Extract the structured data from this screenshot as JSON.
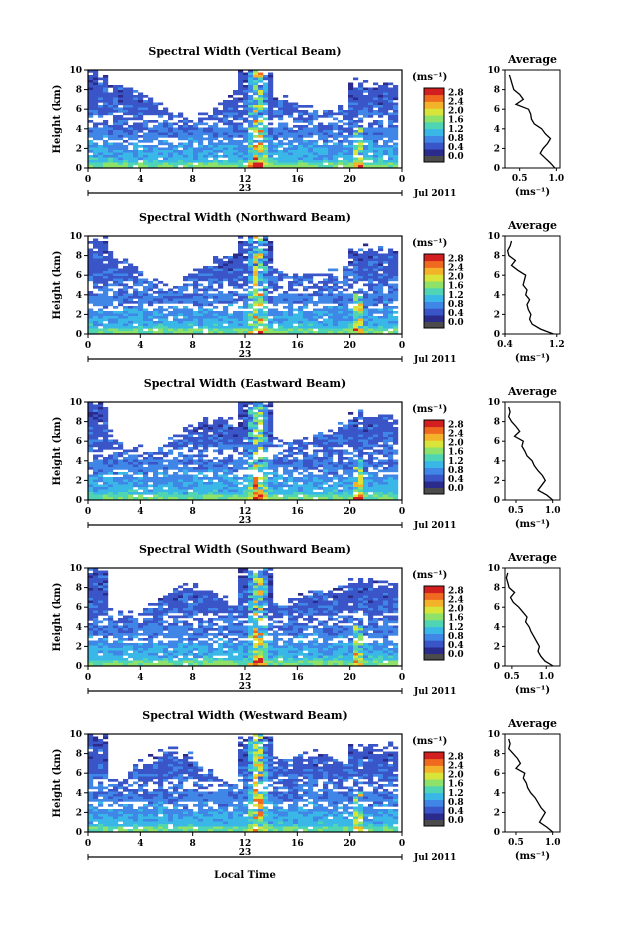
{
  "figure": {
    "common_xlabel": "Local Time",
    "colormap": [
      "#2b2b8c",
      "#3a55c8",
      "#3f86e6",
      "#39b8e8",
      "#4fd4b4",
      "#8ee26a",
      "#d9e43a",
      "#f3b22a",
      "#ef6a1f",
      "#d21f1f"
    ]
  },
  "chart_data": [
    {
      "type": "heatmap",
      "title": "Spectral Width (Vertical Beam)",
      "ylabel": "Height (km)",
      "x_ticks": [
        "0",
        "4",
        "8",
        "12",
        "16",
        "20",
        "0"
      ],
      "y_ticks": [
        "0",
        "2",
        "4",
        "6",
        "8",
        "10"
      ],
      "date_day": "23",
      "date_month": "Jul 2011",
      "xlim": [
        0,
        24
      ],
      "ylim": [
        0,
        10
      ],
      "colorbar": {
        "unit": "(ms⁻¹)",
        "ticks": [
          "0.0",
          "0.4",
          "0.8",
          "1.2",
          "1.6",
          "2.0",
          "2.4",
          "2.8"
        ],
        "range": [
          0,
          3.0
        ]
      },
      "average": {
        "title": "Average",
        "xlabel": "(ms⁻¹)",
        "x_ticks": [
          "0.5",
          "1.0"
        ],
        "xlim": [
          0.3,
          1.05
        ],
        "heights": [
          0,
          0.5,
          1,
          1.5,
          2,
          2.5,
          3,
          3.5,
          4,
          4.5,
          5,
          5.5,
          6,
          6.5,
          7,
          7.5,
          8,
          8.5,
          9,
          9.5
        ],
        "values": [
          0.98,
          0.92,
          0.85,
          0.78,
          0.82,
          0.88,
          0.92,
          0.85,
          0.8,
          0.7,
          0.66,
          0.65,
          0.62,
          0.45,
          0.55,
          0.5,
          0.42,
          0.4,
          0.38,
          0.36
        ]
      }
    },
    {
      "type": "heatmap",
      "title": "Spectral Width (Northward Beam)",
      "ylabel": "Height (km)",
      "x_ticks": [
        "0",
        "4",
        "8",
        "12",
        "16",
        "20",
        "0"
      ],
      "y_ticks": [
        "0",
        "2",
        "4",
        "6",
        "8",
        "10"
      ],
      "date_day": "23",
      "date_month": "Jul 2011",
      "xlim": [
        0,
        24
      ],
      "ylim": [
        0,
        10
      ],
      "colorbar": {
        "unit": "(ms⁻¹)",
        "ticks": [
          "0.0",
          "0.4",
          "0.8",
          "1.2",
          "1.6",
          "2.0",
          "2.4",
          "2.8"
        ],
        "range": [
          0,
          3.0
        ]
      },
      "average": {
        "title": "Average",
        "xlabel": "(ms⁻¹)",
        "x_ticks": [
          "0.4",
          "1.2"
        ],
        "xlim": [
          0.4,
          1.25
        ],
        "heights": [
          0,
          0.5,
          1,
          1.5,
          2,
          2.5,
          3,
          3.5,
          4,
          4.5,
          5,
          5.5,
          6,
          6.5,
          7,
          7.5,
          8,
          8.5,
          9,
          9.5
        ],
        "values": [
          1.15,
          0.95,
          0.82,
          0.78,
          0.8,
          0.76,
          0.74,
          0.78,
          0.72,
          0.74,
          0.68,
          0.7,
          0.72,
          0.6,
          0.5,
          0.56,
          0.46,
          0.44,
          0.48,
          0.5
        ]
      }
    },
    {
      "type": "heatmap",
      "title": "Spectral Width (Eastward Beam)",
      "ylabel": "Height (km)",
      "x_ticks": [
        "0",
        "4",
        "8",
        "12",
        "16",
        "20",
        "0"
      ],
      "y_ticks": [
        "0",
        "2",
        "4",
        "6",
        "8",
        "10"
      ],
      "date_day": "23",
      "date_month": "Jul 2011",
      "xlim": [
        0,
        24
      ],
      "ylim": [
        0,
        10
      ],
      "colorbar": {
        "unit": "(ms⁻¹)",
        "ticks": [
          "0.0",
          "0.4",
          "0.8",
          "1.2",
          "1.6",
          "2.0",
          "2.4",
          "2.8"
        ],
        "range": [
          0,
          3.0
        ]
      },
      "average": {
        "title": "Average",
        "xlabel": "(ms⁻¹)",
        "x_ticks": [
          "0.5",
          "1.0"
        ],
        "xlim": [
          0.35,
          1.1
        ],
        "heights": [
          0,
          0.5,
          1,
          1.5,
          2,
          2.5,
          3,
          3.5,
          4,
          4.5,
          5,
          5.5,
          6,
          6.5,
          7,
          7.5,
          8,
          8.5,
          9,
          9.5
        ],
        "values": [
          1.0,
          0.92,
          0.8,
          0.85,
          0.9,
          0.86,
          0.8,
          0.75,
          0.72,
          0.65,
          0.62,
          0.58,
          0.6,
          0.48,
          0.55,
          0.5,
          0.44,
          0.4,
          0.42,
          0.4
        ]
      }
    },
    {
      "type": "heatmap",
      "title": "Spectral Width (Southward Beam)",
      "ylabel": "Height (km)",
      "x_ticks": [
        "0",
        "4",
        "8",
        "12",
        "16",
        "20",
        "0"
      ],
      "y_ticks": [
        "0",
        "2",
        "4",
        "6",
        "8",
        "10"
      ],
      "date_day": "23",
      "date_month": "Jul 2011",
      "xlim": [
        0,
        24
      ],
      "ylim": [
        0,
        10
      ],
      "colorbar": {
        "unit": "(ms⁻¹)",
        "ticks": [
          "0.0",
          "0.4",
          "0.8",
          "1.2",
          "1.6",
          "2.0",
          "2.4",
          "2.8"
        ],
        "range": [
          0,
          3.0
        ]
      },
      "average": {
        "title": "Average",
        "xlabel": "(ms⁻¹)",
        "x_ticks": [
          "0.5",
          "1.0"
        ],
        "xlim": [
          0.4,
          1.2
        ],
        "heights": [
          0,
          0.5,
          1,
          1.5,
          2,
          2.5,
          3,
          3.5,
          4,
          4.5,
          5,
          5.5,
          6,
          6.5,
          7,
          7.5,
          8,
          8.5,
          9,
          9.5
        ],
        "values": [
          1.1,
          0.98,
          0.92,
          0.88,
          0.9,
          0.86,
          0.82,
          0.78,
          0.75,
          0.7,
          0.72,
          0.66,
          0.6,
          0.52,
          0.48,
          0.54,
          0.46,
          0.44,
          0.42,
          0.44
        ]
      }
    },
    {
      "type": "heatmap",
      "title": "Spectral Width (Westward Beam)",
      "ylabel": "Height (km)",
      "x_ticks": [
        "0",
        "4",
        "8",
        "12",
        "16",
        "20",
        "0"
      ],
      "y_ticks": [
        "0",
        "2",
        "4",
        "6",
        "8",
        "10"
      ],
      "date_day": "23",
      "date_month": "Jul 2011",
      "xlim": [
        0,
        24
      ],
      "ylim": [
        0,
        10
      ],
      "colorbar": {
        "unit": "(ms⁻¹)",
        "ticks": [
          "0.0",
          "0.4",
          "0.8",
          "1.2",
          "1.6",
          "2.0",
          "2.4",
          "2.8"
        ],
        "range": [
          0,
          3.0
        ]
      },
      "average": {
        "title": "Average",
        "xlabel": "(ms⁻¹)",
        "x_ticks": [
          "0.5",
          "1.0"
        ],
        "xlim": [
          0.35,
          1.1
        ],
        "heights": [
          0,
          0.5,
          1,
          1.5,
          2,
          2.5,
          3,
          3.5,
          4,
          4.5,
          5,
          5.5,
          6,
          6.5,
          7,
          7.5,
          8,
          8.5,
          9,
          9.5
        ],
        "values": [
          1.0,
          0.92,
          0.82,
          0.86,
          0.9,
          0.84,
          0.8,
          0.76,
          0.7,
          0.66,
          0.64,
          0.6,
          0.62,
          0.5,
          0.56,
          0.52,
          0.46,
          0.4,
          0.42,
          0.4
        ]
      }
    }
  ]
}
